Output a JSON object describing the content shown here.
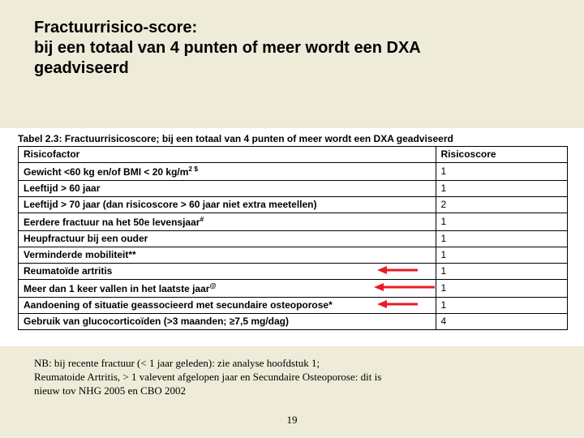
{
  "title_lines": {
    "l1": "Fractuurrisico-score:",
    "l2": "bij een totaal van 4 punten of meer wordt een DXA",
    "l3": "geadviseerd"
  },
  "table": {
    "caption": "Tabel 2.3: Fractuurrisicoscore;  bij een totaal van 4 punten of meer wordt een DXA geadviseerd",
    "header": {
      "factor": "Risicofactor",
      "score": "Risicoscore"
    },
    "rows": [
      {
        "factor_html": "Gewicht <60 kg en/of BMI < 20 kg/m<sup>2 $</sup>",
        "score": "1"
      },
      {
        "factor_html": "Leeftijd > 60 jaar",
        "score": "1"
      },
      {
        "factor_html": "Leeftijd > 70 jaar (dan risicoscore > 60 jaar niet extra meetellen)",
        "score": "2"
      },
      {
        "factor_html": "Eerdere fractuur  na het 50e levensjaar<sup>#</sup>",
        "score": "1"
      },
      {
        "factor_html": "Heupfractuur  bij een ouder",
        "score": "1"
      },
      {
        "factor_html": "Verminderde mobiliteit**",
        "score": "1"
      },
      {
        "factor_html": "Reumatoïde artritis",
        "score": "1",
        "arrow": "short"
      },
      {
        "factor_html": "Meer dan 1 keer vallen in het laatste jaar<sup>@</sup>",
        "score": "1",
        "arrow": "long"
      },
      {
        "factor_html": "Aandoening of situatie geassocieerd met secundaire osteoporose*",
        "score": "1",
        "arrow": "short"
      },
      {
        "factor_html": "Gebruik van glucocorticoïden (>3 maanden; ≥7,5 mg/dag)",
        "score": "4"
      }
    ]
  },
  "footnote": {
    "l1": "NB: bij recente fractuur (< 1 jaar geleden): zie analyse hoofdstuk 1;",
    "l2": "Reumatoide Artritis, > 1 valevent afgelopen jaar en Secundaire Osteoporose: dit is",
    "l3": "nieuw tov NHG 2005 en CBO 2002"
  },
  "page_number": "19",
  "style": {
    "arrow_color": "#e81c23",
    "slide_bg": "#eeebd8",
    "table_bg": "#ffffff",
    "border_color": "#000000"
  }
}
